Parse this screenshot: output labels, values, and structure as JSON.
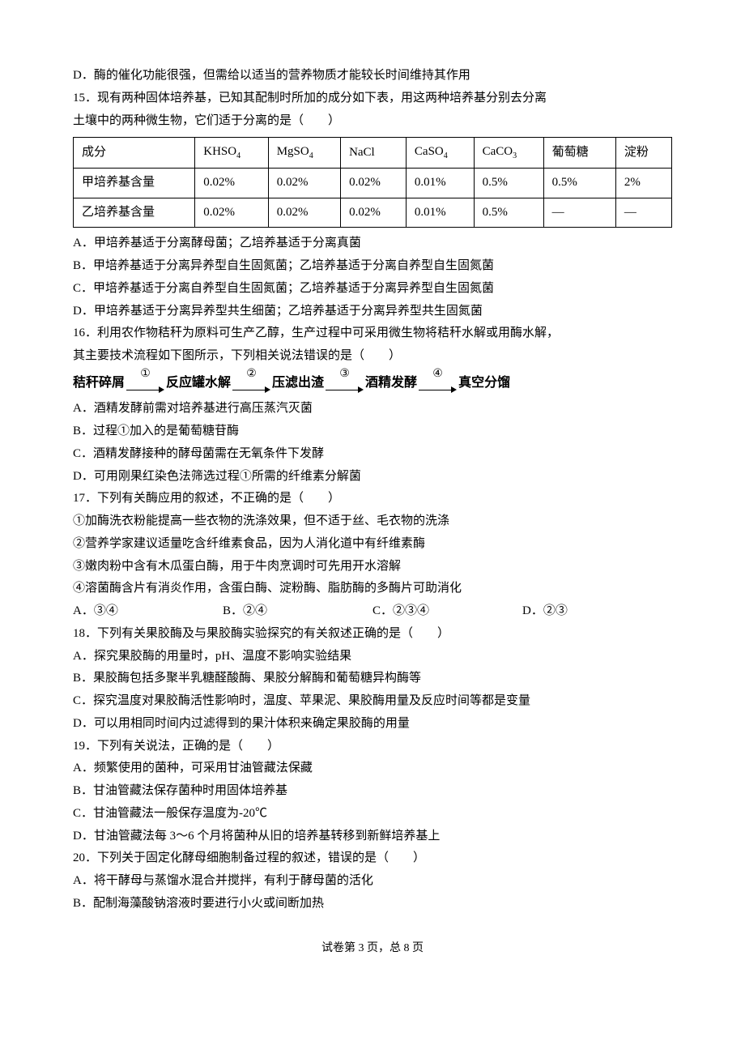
{
  "q14d": "D．酶的催化功能很强，但需给以适当的营养物质才能较长时间维持其作用",
  "q15": {
    "stem1": "15．现有两种固体培养基，已知其配制时所加的成分如下表，用这两种培养基分别去分离",
    "stem2": "土壤中的两种微生物，它们适于分离的是（　　）",
    "table": {
      "headers": [
        "成分",
        "KHSO₄",
        "MgSO₄",
        "NaCl",
        "CaSO₄",
        "CaCO₃",
        "葡萄糖",
        "淀粉"
      ],
      "rows": [
        [
          "甲培养基含量",
          "0.02%",
          "0.02%",
          "0.02%",
          "0.01%",
          "0.5%",
          "0.5%",
          "2%"
        ],
        [
          "乙培养基含量",
          "0.02%",
          "0.02%",
          "0.02%",
          "0.01%",
          "0.5%",
          "—",
          "—"
        ]
      ]
    },
    "a": "A．甲培养基适于分离酵母菌；乙培养基适于分离真菌",
    "b": "B．甲培养基适于分离异养型自生固氮菌；乙培养基适于分离自养型自生固氮菌",
    "c": "C．甲培养基适于分离自养型自生固氮菌；乙培养基适于分离异养型自生固氮菌",
    "d": "D．甲培养基适于分离异养型共生细菌；乙培养基适于分离异养型共生固氮菌"
  },
  "q16": {
    "stem1": "16．利用农作物秸秆为原料可生产乙醇，生产过程中可采用微生物将秸秆水解或用酶水解，",
    "stem2": "其主要技术流程如下图所示，下列相关说法错误的是（　　）",
    "flow": [
      "秸秆碎屑",
      "反应罐水解",
      "压滤出渣",
      "酒精发酵",
      "真空分馏"
    ],
    "flow_labels": [
      "①",
      "②",
      "③",
      "④"
    ],
    "a": "A．酒精发酵前需对培养基进行高压蒸汽灭菌",
    "b": "B．过程①加入的是葡萄糖苷酶",
    "c": "C．酒精发酵接种的酵母菌需在无氧条件下发酵",
    "d": "D．可用刚果红染色法筛选过程①所需的纤维素分解菌"
  },
  "q17": {
    "stem": "17．下列有关酶应用的叙述，不正确的是（　　）",
    "l1": "①加酶洗衣粉能提高一些衣物的洗涤效果，但不适于丝、毛衣物的洗涤",
    "l2": "②营养学家建议适量吃含纤维素食品，因为人消化道中有纤维素酶",
    "l3": "③嫩肉粉中含有木瓜蛋白酶，用于牛肉烹调时可先用开水溶解",
    "l4": "④溶菌酶含片有消炎作用，含蛋白酶、淀粉酶、脂肪酶的多酶片可助消化",
    "opts": {
      "a": "A．③④",
      "b": "B．②④",
      "c": "C．②③④",
      "d": "D．②③"
    }
  },
  "q18": {
    "stem": "18．下列有关果胶酶及与果胶酶实验探究的有关叙述正确的是（　　）",
    "a": "A．探究果胶酶的用量时，pH、温度不影响实验结果",
    "b": "B．果胶酶包括多聚半乳糖醛酸酶、果胶分解酶和葡萄糖异构酶等",
    "c": "C．探究温度对果胶酶活性影响时，温度、苹果泥、果胶酶用量及反应时间等都是变量",
    "d": "D．可以用相同时间内过滤得到的果汁体积来确定果胶酶的用量"
  },
  "q19": {
    "stem": "19．下列有关说法，正确的是（　　）",
    "a": "A．频繁使用的菌种，可采用甘油管藏法保藏",
    "b": "B．甘油管藏法保存菌种时用固体培养基",
    "c": "C．甘油管藏法一般保存温度为-20℃",
    "d": "D．甘油管藏法每 3～6 个月将菌种从旧的培养基转移到新鲜培养基上"
  },
  "q20": {
    "stem": "20．下列关于固定化酵母细胞制备过程的叙述，错误的是（　　）",
    "a": "A．将干酵母与蒸馏水混合并搅拌，有利于酵母菌的活化",
    "b": "B．配制海藻酸钠溶液时要进行小火或间断加热"
  },
  "footer": "试卷第 3 页，总 8 页"
}
